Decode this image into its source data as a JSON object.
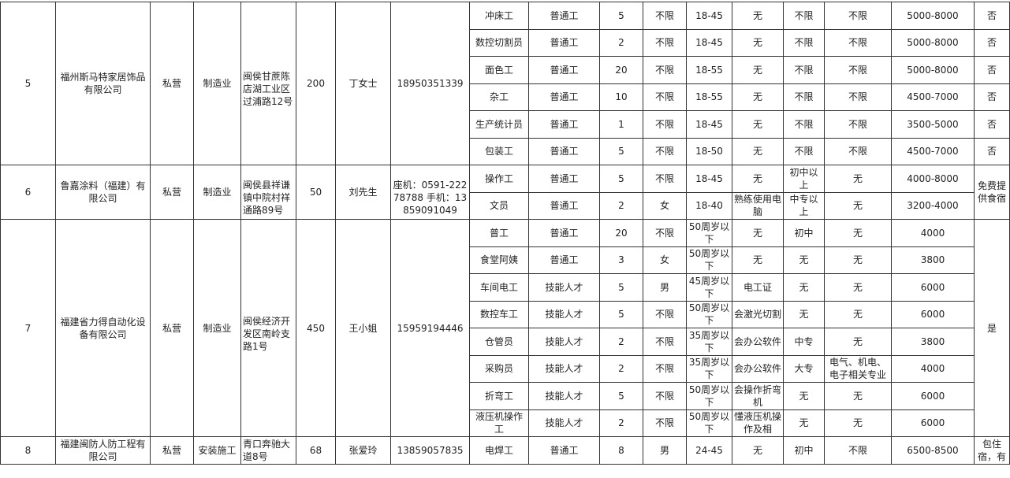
{
  "companies": [
    {
      "no": "5",
      "name": "福州斯马特家居饰品有限公司",
      "type": "私营",
      "industry": "制造业",
      "address": "闽侯甘蔗陈店湖工业区过浦路12号",
      "headcount": "200",
      "contact": "丁女士",
      "phone": "18950351339",
      "welfare_shared": null,
      "positions": [
        {
          "title": "冲床工",
          "category": "普通工",
          "count": "5",
          "gender": "不限",
          "age": "18-45",
          "skills": "无",
          "education": "不限",
          "major": "不限",
          "salary": "5000-8000",
          "welfare": "否"
        },
        {
          "title": "数控切割员",
          "category": "普通工",
          "count": "2",
          "gender": "不限",
          "age": "18-45",
          "skills": "无",
          "education": "不限",
          "major": "不限",
          "salary": "5000-8000",
          "welfare": "否"
        },
        {
          "title": "面色工",
          "category": "普通工",
          "count": "20",
          "gender": "不限",
          "age": "18-55",
          "skills": "无",
          "education": "不限",
          "major": "不限",
          "salary": "5000-8000",
          "welfare": "否"
        },
        {
          "title": "杂工",
          "category": "普通工",
          "count": "10",
          "gender": "不限",
          "age": "18-55",
          "skills": "无",
          "education": "不限",
          "major": "不限",
          "salary": "4500-7000",
          "welfare": "否"
        },
        {
          "title": "生产统计员",
          "category": "普通工",
          "count": "1",
          "gender": "不限",
          "age": "18-45",
          "skills": "无",
          "education": "不限",
          "major": "不限",
          "salary": "3500-5000",
          "welfare": "否"
        },
        {
          "title": "包装工",
          "category": "普通工",
          "count": "5",
          "gender": "不限",
          "age": "18-50",
          "skills": "无",
          "education": "不限",
          "major": "不限",
          "salary": "4500-7000",
          "welfare": "否"
        }
      ]
    },
    {
      "no": "6",
      "name": "鲁嘉涂料（福建）有限公司",
      "type": "私营",
      "industry": "制造业",
      "address": "闽侯县祥谦镇中院村祥通路89号",
      "headcount": "50",
      "contact": "刘先生",
      "phone": "座机：0591-22278788 手机：13859091049",
      "welfare_shared": "免费提供食宿",
      "positions": [
        {
          "title": "操作工",
          "category": "普通工",
          "count": "5",
          "gender": "不限",
          "age": "18-45",
          "skills": "无",
          "education": "初中以上",
          "major": "无",
          "salary": "4000-8000"
        },
        {
          "title": "文员",
          "category": "普通工",
          "count": "2",
          "gender": "女",
          "age": "18-40",
          "skills": "熟练使用电脑",
          "education": "中专以上",
          "major": "无",
          "salary": "3200-4000"
        }
      ]
    },
    {
      "no": "7",
      "name": "福建省力得自动化设备有限公司",
      "type": "私营",
      "industry": "制造业",
      "address": "闽侯经济开发区南岭支路1号",
      "headcount": "450",
      "contact": "王小姐",
      "phone": "15959194446",
      "welfare_shared": "是",
      "positions": [
        {
          "title": "普工",
          "category": "普通工",
          "count": "20",
          "gender": "不限",
          "age": "50周岁以下",
          "skills": "无",
          "education": "初中",
          "major": "无",
          "salary": "4000"
        },
        {
          "title": "食堂阿姨",
          "category": "普通工",
          "count": "3",
          "gender": "女",
          "age": "50周岁以下",
          "skills": "无",
          "education": "无",
          "major": "无",
          "salary": "3800"
        },
        {
          "title": "车间电工",
          "category": "技能人才",
          "count": "5",
          "gender": "男",
          "age": "45周岁以下",
          "skills": "电工证",
          "education": "无",
          "major": "无",
          "salary": "6000"
        },
        {
          "title": "数控车工",
          "category": "技能人才",
          "count": "5",
          "gender": "不限",
          "age": "50周岁以下",
          "skills": "会激光切割",
          "education": "无",
          "major": "无",
          "salary": "6000"
        },
        {
          "title": "仓管员",
          "category": "技能人才",
          "count": "2",
          "gender": "不限",
          "age": "35周岁以下",
          "skills": "会办公软件",
          "education": "中专",
          "major": "无",
          "salary": "3800"
        },
        {
          "title": "采购员",
          "category": "技能人才",
          "count": "2",
          "gender": "不限",
          "age": "35周岁以下",
          "skills": "会办公软件",
          "education": "大专",
          "major": "电气、机电、电子相关专业",
          "salary": "4000"
        },
        {
          "title": "折弯工",
          "category": "技能人才",
          "count": "5",
          "gender": "不限",
          "age": "50周岁以下",
          "skills": "会操作折弯机",
          "education": "无",
          "major": "无",
          "salary": "6000"
        },
        {
          "title": "液压机操作工",
          "category": "技能人才",
          "count": "2",
          "gender": "不限",
          "age": "50周岁以下",
          "skills": "懂液压机操作及相",
          "education": "无",
          "major": "无",
          "salary": "6000"
        }
      ]
    },
    {
      "no": "8",
      "name": "福建闽防人防工程有限公司",
      "type": "私营",
      "industry": "安装施工",
      "address": "青口奔驰大道8号",
      "headcount": "68",
      "contact": "张爱玲",
      "phone": "13859057835",
      "welfare_shared": "包住宿，有",
      "positions": [
        {
          "title": "电焊工",
          "category": "普通工",
          "count": "8",
          "gender": "男",
          "age": "24-45",
          "skills": "无",
          "education": "初中",
          "major": "不限",
          "salary": "6500-8500"
        }
      ]
    }
  ]
}
